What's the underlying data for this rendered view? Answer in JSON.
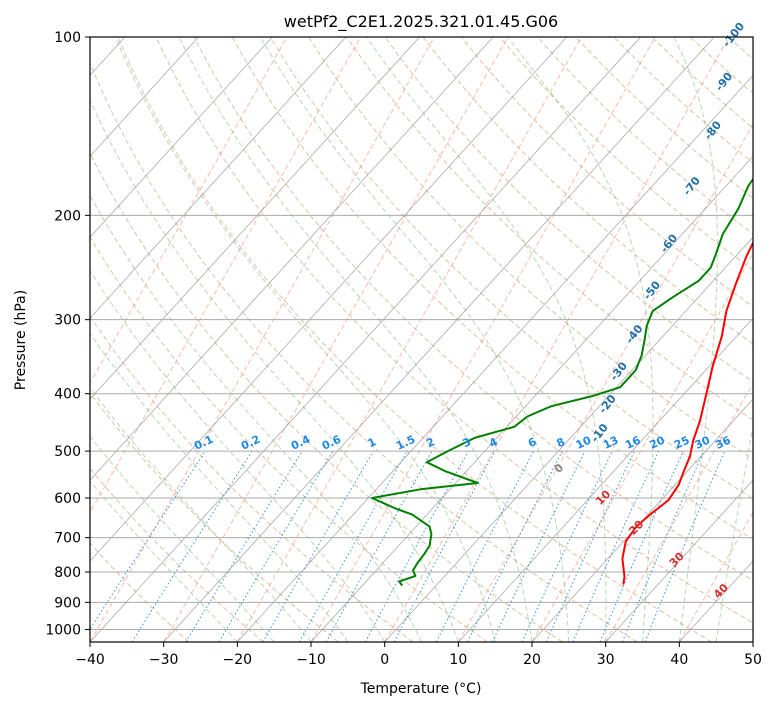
{
  "chart_data": {
    "type": "line",
    "title": "wetPf2_C2E1.2025.321.01.45.G06",
    "xlabel": "Temperature (°C)",
    "ylabel": "Pressure (hPa)",
    "xlim": [
      -40,
      50
    ],
    "ylim": [
      1050,
      100
    ],
    "x_ticks": [
      "−40",
      "−30",
      "−20",
      "−10",
      "0",
      "10",
      "20",
      "30",
      "40",
      "50"
    ],
    "y_ticks": [
      {
        "p": 1000,
        "label": "1000"
      },
      {
        "p": 900,
        "label": "900"
      },
      {
        "p": 800,
        "label": "800"
      },
      {
        "p": 700,
        "label": "700"
      },
      {
        "p": 600,
        "label": "600"
      },
      {
        "p": 500,
        "label": "500"
      },
      {
        "p": 400,
        "label": "400"
      },
      {
        "p": 300,
        "label": "300"
      },
      {
        "p": 200,
        "label": "200"
      },
      {
        "p": 100,
        "label": "100"
      }
    ],
    "series": [
      {
        "name": "Temperature",
        "color": "#ff0000",
        "points": [
          [
            25.3,
            840
          ],
          [
            24.5,
            815
          ],
          [
            22.0,
            760
          ],
          [
            20.3,
            710
          ],
          [
            19.9,
            670
          ],
          [
            20.3,
            640
          ],
          [
            21.0,
            605
          ],
          [
            20.5,
            570
          ],
          [
            19.5,
            540
          ],
          [
            18.5,
            510
          ],
          [
            17.0,
            480
          ],
          [
            15.5,
            445
          ],
          [
            13.0,
            400
          ],
          [
            10.5,
            360
          ],
          [
            8.0,
            320
          ],
          [
            5.5,
            290
          ],
          [
            3.5,
            262
          ],
          [
            1.5,
            235
          ],
          [
            0.0,
            212
          ],
          [
            -1.0,
            195
          ],
          [
            -1.2,
            185
          ],
          [
            -0.5,
            175
          ],
          [
            -0.2,
            160
          ],
          [
            0.0,
            150
          ],
          [
            1.0,
            135
          ],
          [
            2.5,
            122
          ],
          [
            4.0,
            112
          ],
          [
            5.0,
            105
          ],
          [
            6.0,
            100
          ]
        ]
      },
      {
        "name": "Dewpoint",
        "color": "#008000",
        "points": [
          [
            -4.6,
            843
          ],
          [
            -5.5,
            830
          ],
          [
            -4.0,
            812
          ],
          [
            -5.0,
            795
          ],
          [
            -5.3,
            772
          ],
          [
            -5.5,
            745
          ],
          [
            -5.8,
            722
          ],
          [
            -7.0,
            690
          ],
          [
            -8.2,
            670
          ],
          [
            -12.0,
            640
          ],
          [
            -15.0,
            625
          ],
          [
            -19.5,
            600
          ],
          [
            -14.0,
            580
          ],
          [
            -7.0,
            566
          ],
          [
            -13.0,
            540
          ],
          [
            -16.5,
            522
          ],
          [
            -15.0,
            500
          ],
          [
            -13.0,
            475
          ],
          [
            -9.0,
            455
          ],
          [
            -8.5,
            437
          ],
          [
            -6.5,
            420
          ],
          [
            -2.0,
            403
          ],
          [
            0.5,
            390
          ],
          [
            0.5,
            365
          ],
          [
            -0.5,
            345
          ],
          [
            -2.0,
            325
          ],
          [
            -3.5,
            307
          ],
          [
            -4.5,
            290
          ],
          [
            -3.5,
            275
          ],
          [
            -2.0,
            258
          ],
          [
            -2.0,
            245
          ],
          [
            -3.0,
            232
          ],
          [
            -4.5,
            215
          ],
          [
            -5.5,
            195
          ],
          [
            -7.0,
            178
          ],
          [
            -7.5,
            165
          ],
          [
            -6.5,
            155
          ],
          [
            -4.5,
            145
          ],
          [
            -2.0,
            130
          ],
          [
            0.0,
            115
          ],
          [
            2.0,
            104
          ],
          [
            3.0,
            100
          ]
        ]
      }
    ],
    "dry_adiabat_labels": [
      "-100",
      "-90",
      "-80",
      "-70",
      "-60",
      "-50",
      "-40",
      "-30",
      "-20",
      "-10"
    ],
    "mixing_ratio_labels": [
      "0.1",
      "0.2",
      "0.4",
      "0.6",
      "1",
      "1.5",
      "2",
      "3",
      "4",
      "6",
      "8",
      "10",
      "13",
      "16",
      "20",
      "25",
      "30",
      "36"
    ],
    "moist_adiabat_labels": [
      "0",
      "10",
      "20",
      "30",
      "40"
    ],
    "label_colors": {
      "temperature": "#ff0000",
      "dewpoint": "#008000"
    }
  }
}
